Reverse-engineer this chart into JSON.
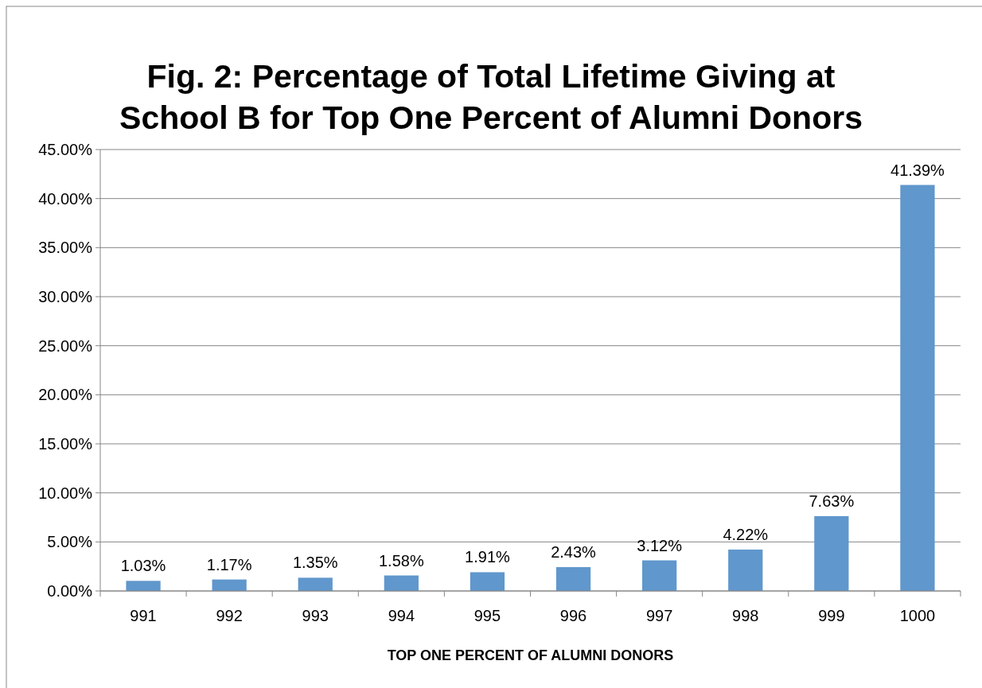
{
  "chart_data": {
    "type": "bar",
    "title": "Fig. 2: Percentage of Total Lifetime Giving at School B for Top One Percent of Alumni Donors",
    "xlabel": "TOP ONE PERCENT OF ALUMNI DONORS",
    "categories": [
      "991",
      "992",
      "993",
      "994",
      "995",
      "996",
      "997",
      "998",
      "999",
      "1000"
    ],
    "values": [
      1.03,
      1.17,
      1.35,
      1.58,
      1.91,
      2.43,
      3.12,
      4.22,
      7.63,
      41.39
    ],
    "value_labels": [
      "1.03%",
      "1.17%",
      "1.35%",
      "1.58%",
      "1.91%",
      "2.43%",
      "3.12%",
      "4.22%",
      "7.63%",
      "41.39%"
    ],
    "color": "#6097cc",
    "ylim": [
      0,
      45
    ],
    "yticks": [
      {
        "value": 0,
        "label": "0.00%"
      },
      {
        "value": 5,
        "label": "5.00%"
      },
      {
        "value": 10,
        "label": "10.00%"
      },
      {
        "value": 15,
        "label": "15.00%"
      },
      {
        "value": 20,
        "label": "20.00%"
      },
      {
        "value": 25,
        "label": "25.00%"
      },
      {
        "value": 30,
        "label": "30.00%"
      },
      {
        "value": 35,
        "label": "35.00%"
      },
      {
        "value": 40,
        "label": "40.00%"
      },
      {
        "value": 45,
        "label": "45.00%"
      }
    ],
    "grid": "y"
  }
}
